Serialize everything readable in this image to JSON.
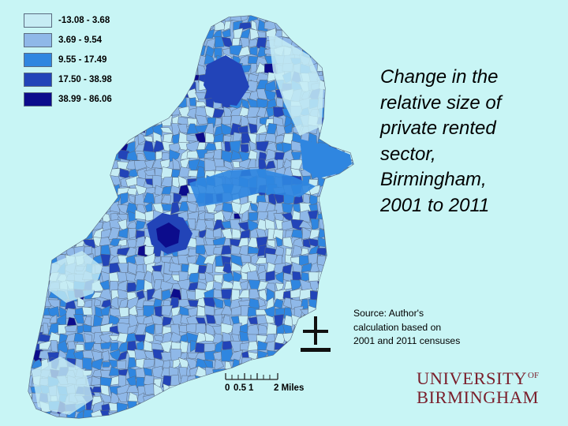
{
  "colors": {
    "background": "#c8f5f5",
    "legend_swatches": [
      "#c6ecf4",
      "#8fb8e8",
      "#2f86e0",
      "#2244b8",
      "#0c0c8c"
    ],
    "logo": "#7a1e2b"
  },
  "legend": {
    "items": [
      {
        "label": "-13.08 - 3.68",
        "color": "#c6ecf4"
      },
      {
        "label": "3.69 - 9.54",
        "color": "#8fb8e8"
      },
      {
        "label": "9.55 - 17.49",
        "color": "#2f86e0"
      },
      {
        "label": "17.50 - 38.98",
        "color": "#2244b8"
      },
      {
        "label": "38.99 - 86.06",
        "color": "#0c0c8c"
      }
    ]
  },
  "title": {
    "lines": [
      "Change in the",
      "relative size of",
      "private rented",
      "sector,",
      "Birmingham,",
      "2001 to 2011"
    ]
  },
  "source": {
    "lines": [
      "Source: Author's",
      "calculation based on",
      "2001 and 2011 censuses"
    ]
  },
  "scale": {
    "labels": [
      "0",
      "0.5",
      "1",
      "2 Miles"
    ]
  },
  "north_arrow": {
    "icon": "north-arrow-icon"
  },
  "logo": {
    "line1": "UNIVERSITY",
    "of": "OF",
    "line2": "BIRMINGHAM"
  }
}
